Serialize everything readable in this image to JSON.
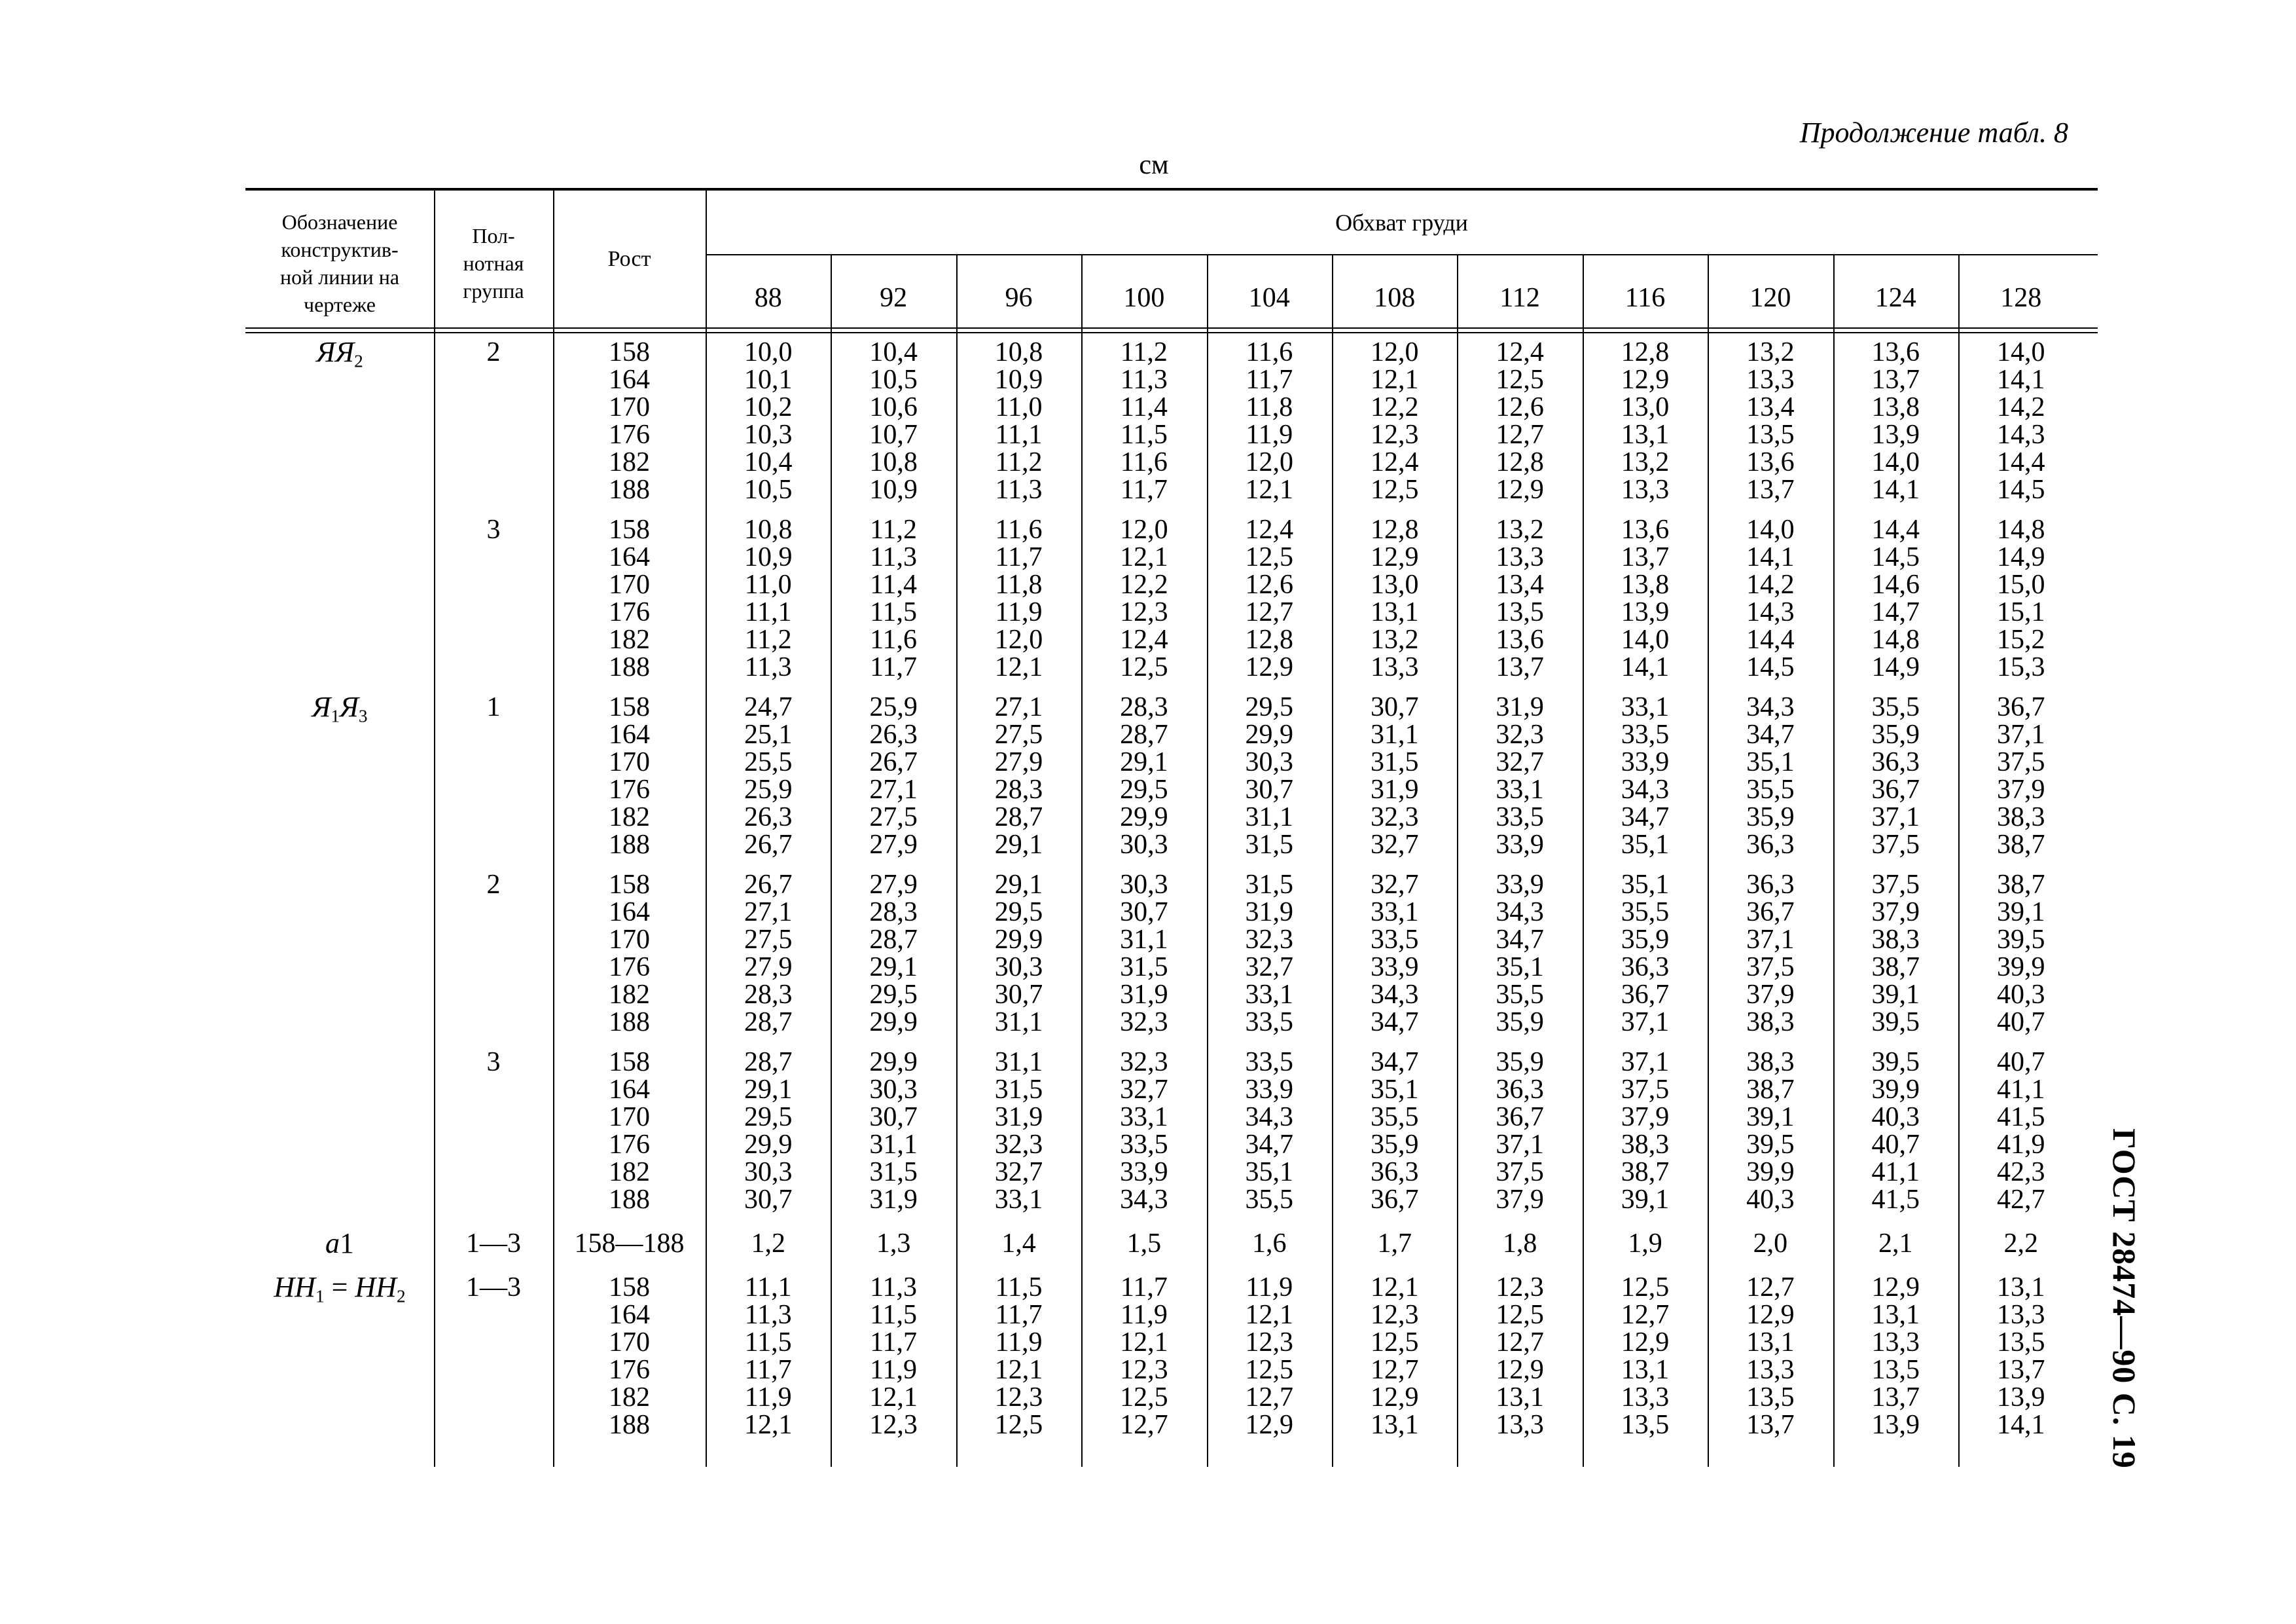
{
  "page": {
    "continuation_label": "Продолжение табл. 8",
    "unit_label": "см",
    "side_label": "ГОСТ 28474—90 С. 19"
  },
  "table": {
    "headers": {
      "col1": [
        "Обозначение",
        "конструктив-",
        "ной линии на",
        "чертеже"
      ],
      "col2": [
        "Пол-",
        "нотная",
        "группа"
      ],
      "col3": "Рост",
      "span": "Обхват груди",
      "sizes": [
        "88",
        "92",
        "96",
        "100",
        "104",
        "108",
        "112",
        "116",
        "120",
        "124",
        "128"
      ]
    },
    "sections": [
      {
        "label_parts": [
          {
            "t": "ЯЯ",
            "i": 1
          },
          {
            "t": "2",
            "sub": 1
          }
        ],
        "group": "2",
        "rows": [
          {
            "rost": "158",
            "values": [
              "10,0",
              "10,4",
              "10,8",
              "11,2",
              "11,6",
              "12,0",
              "12,4",
              "12,8",
              "13,2",
              "13,6",
              "14,0"
            ]
          },
          {
            "rost": "164",
            "values": [
              "10,1",
              "10,5",
              "10,9",
              "11,3",
              "11,7",
              "12,1",
              "12,5",
              "12,9",
              "13,3",
              "13,7",
              "14,1"
            ]
          },
          {
            "rost": "170",
            "values": [
              "10,2",
              "10,6",
              "11,0",
              "11,4",
              "11,8",
              "12,2",
              "12,6",
              "13,0",
              "13,4",
              "13,8",
              "14,2"
            ]
          },
          {
            "rost": "176",
            "values": [
              "10,3",
              "10,7",
              "11,1",
              "11,5",
              "11,9",
              "12,3",
              "12,7",
              "13,1",
              "13,5",
              "13,9",
              "14,3"
            ]
          },
          {
            "rost": "182",
            "values": [
              "10,4",
              "10,8",
              "11,2",
              "11,6",
              "12,0",
              "12,4",
              "12,8",
              "13,2",
              "13,6",
              "14,0",
              "14,4"
            ]
          },
          {
            "rost": "188",
            "values": [
              "10,5",
              "10,9",
              "11,3",
              "11,7",
              "12,1",
              "12,5",
              "12,9",
              "13,3",
              "13,7",
              "14,1",
              "14,5"
            ]
          }
        ]
      },
      {
        "label_parts": [],
        "group": "3",
        "rows": [
          {
            "rost": "158",
            "values": [
              "10,8",
              "11,2",
              "11,6",
              "12,0",
              "12,4",
              "12,8",
              "13,2",
              "13,6",
              "14,0",
              "14,4",
              "14,8"
            ]
          },
          {
            "rost": "164",
            "values": [
              "10,9",
              "11,3",
              "11,7",
              "12,1",
              "12,5",
              "12,9",
              "13,3",
              "13,7",
              "14,1",
              "14,5",
              "14,9"
            ]
          },
          {
            "rost": "170",
            "values": [
              "11,0",
              "11,4",
              "11,8",
              "12,2",
              "12,6",
              "13,0",
              "13,4",
              "13,8",
              "14,2",
              "14,6",
              "15,0"
            ]
          },
          {
            "rost": "176",
            "values": [
              "11,1",
              "11,5",
              "11,9",
              "12,3",
              "12,7",
              "13,1",
              "13,5",
              "13,9",
              "14,3",
              "14,7",
              "15,1"
            ]
          },
          {
            "rost": "182",
            "values": [
              "11,2",
              "11,6",
              "12,0",
              "12,4",
              "12,8",
              "13,2",
              "13,6",
              "14,0",
              "14,4",
              "14,8",
              "15,2"
            ]
          },
          {
            "rost": "188",
            "values": [
              "11,3",
              "11,7",
              "12,1",
              "12,5",
              "12,9",
              "13,3",
              "13,7",
              "14,1",
              "14,5",
              "14,9",
              "15,3"
            ]
          }
        ]
      },
      {
        "label_parts": [
          {
            "t": "Я",
            "i": 1
          },
          {
            "t": "1",
            "sub": 1
          },
          {
            "t": "Я",
            "i": 1
          },
          {
            "t": "3",
            "sub": 1
          }
        ],
        "group": "1",
        "rows": [
          {
            "rost": "158",
            "values": [
              "24,7",
              "25,9",
              "27,1",
              "28,3",
              "29,5",
              "30,7",
              "31,9",
              "33,1",
              "34,3",
              "35,5",
              "36,7"
            ]
          },
          {
            "rost": "164",
            "values": [
              "25,1",
              "26,3",
              "27,5",
              "28,7",
              "29,9",
              "31,1",
              "32,3",
              "33,5",
              "34,7",
              "35,9",
              "37,1"
            ]
          },
          {
            "rost": "170",
            "values": [
              "25,5",
              "26,7",
              "27,9",
              "29,1",
              "30,3",
              "31,5",
              "32,7",
              "33,9",
              "35,1",
              "36,3",
              "37,5"
            ]
          },
          {
            "rost": "176",
            "values": [
              "25,9",
              "27,1",
              "28,3",
              "29,5",
              "30,7",
              "31,9",
              "33,1",
              "34,3",
              "35,5",
              "36,7",
              "37,9"
            ]
          },
          {
            "rost": "182",
            "values": [
              "26,3",
              "27,5",
              "28,7",
              "29,9",
              "31,1",
              "32,3",
              "33,5",
              "34,7",
              "35,9",
              "37,1",
              "38,3"
            ]
          },
          {
            "rost": "188",
            "values": [
              "26,7",
              "27,9",
              "29,1",
              "30,3",
              "31,5",
              "32,7",
              "33,9",
              "35,1",
              "36,3",
              "37,5",
              "38,7"
            ]
          }
        ]
      },
      {
        "label_parts": [],
        "group": "2",
        "rows": [
          {
            "rost": "158",
            "values": [
              "26,7",
              "27,9",
              "29,1",
              "30,3",
              "31,5",
              "32,7",
              "33,9",
              "35,1",
              "36,3",
              "37,5",
              "38,7"
            ]
          },
          {
            "rost": "164",
            "values": [
              "27,1",
              "28,3",
              "29,5",
              "30,7",
              "31,9",
              "33,1",
              "34,3",
              "35,5",
              "36,7",
              "37,9",
              "39,1"
            ]
          },
          {
            "rost": "170",
            "values": [
              "27,5",
              "28,7",
              "29,9",
              "31,1",
              "32,3",
              "33,5",
              "34,7",
              "35,9",
              "37,1",
              "38,3",
              "39,5"
            ]
          },
          {
            "rost": "176",
            "values": [
              "27,9",
              "29,1",
              "30,3",
              "31,5",
              "32,7",
              "33,9",
              "35,1",
              "36,3",
              "37,5",
              "38,7",
              "39,9"
            ]
          },
          {
            "rost": "182",
            "values": [
              "28,3",
              "29,5",
              "30,7",
              "31,9",
              "33,1",
              "34,3",
              "35,5",
              "36,7",
              "37,9",
              "39,1",
              "40,3"
            ]
          },
          {
            "rost": "188",
            "values": [
              "28,7",
              "29,9",
              "31,1",
              "32,3",
              "33,5",
              "34,7",
              "35,9",
              "37,1",
              "38,3",
              "39,5",
              "40,7"
            ]
          }
        ]
      },
      {
        "label_parts": [],
        "group": "3",
        "rows": [
          {
            "rost": "158",
            "values": [
              "28,7",
              "29,9",
              "31,1",
              "32,3",
              "33,5",
              "34,7",
              "35,9",
              "37,1",
              "38,3",
              "39,5",
              "40,7"
            ]
          },
          {
            "rost": "164",
            "values": [
              "29,1",
              "30,3",
              "31,5",
              "32,7",
              "33,9",
              "35,1",
              "36,3",
              "37,5",
              "38,7",
              "39,9",
              "41,1"
            ]
          },
          {
            "rost": "170",
            "values": [
              "29,5",
              "30,7",
              "31,9",
              "33,1",
              "34,3",
              "35,5",
              "36,7",
              "37,9",
              "39,1",
              "40,3",
              "41,5"
            ]
          },
          {
            "rost": "176",
            "values": [
              "29,9",
              "31,1",
              "32,3",
              "33,5",
              "34,7",
              "35,9",
              "37,1",
              "38,3",
              "39,5",
              "40,7",
              "41,9"
            ]
          },
          {
            "rost": "182",
            "values": [
              "30,3",
              "31,5",
              "32,7",
              "33,9",
              "35,1",
              "36,3",
              "37,5",
              "38,7",
              "39,9",
              "41,1",
              "42,3"
            ]
          },
          {
            "rost": "188",
            "values": [
              "30,7",
              "31,9",
              "33,1",
              "34,3",
              "35,5",
              "36,7",
              "37,9",
              "39,1",
              "40,3",
              "41,5",
              "42,7"
            ]
          }
        ]
      },
      {
        "label_parts": [
          {
            "t": "a",
            "i": 1
          },
          {
            "t": "1"
          }
        ],
        "group": "1—3",
        "rows": [
          {
            "rost": "158—188",
            "values": [
              "1,2",
              "1,3",
              "1,4",
              "1,5",
              "1,6",
              "1,7",
              "1,8",
              "1,9",
              "2,0",
              "2,1",
              "2,2"
            ]
          }
        ]
      },
      {
        "label_parts": [
          {
            "t": "НН",
            "i": 1
          },
          {
            "t": "1",
            "sub": 1
          },
          {
            "t": " = "
          },
          {
            "t": "НН",
            "i": 1
          },
          {
            "t": "2",
            "sub": 1
          }
        ],
        "group": "1—3",
        "rows": [
          {
            "rost": "158",
            "values": [
              "11,1",
              "11,3",
              "11,5",
              "11,7",
              "11,9",
              "12,1",
              "12,3",
              "12,5",
              "12,7",
              "12,9",
              "13,1"
            ]
          },
          {
            "rost": "164",
            "values": [
              "11,3",
              "11,5",
              "11,7",
              "11,9",
              "12,1",
              "12,3",
              "12,5",
              "12,7",
              "12,9",
              "13,1",
              "13,3"
            ]
          },
          {
            "rost": "170",
            "values": [
              "11,5",
              "11,7",
              "11,9",
              "12,1",
              "12,3",
              "12,5",
              "12,7",
              "12,9",
              "13,1",
              "13,3",
              "13,5"
            ]
          },
          {
            "rost": "176",
            "values": [
              "11,7",
              "11,9",
              "12,1",
              "12,3",
              "12,5",
              "12,7",
              "12,9",
              "13,1",
              "13,3",
              "13,5",
              "13,7"
            ]
          },
          {
            "rost": "182",
            "values": [
              "11,9",
              "12,1",
              "12,3",
              "12,5",
              "12,7",
              "12,9",
              "13,1",
              "13,3",
              "13,5",
              "13,7",
              "13,9"
            ]
          },
          {
            "rost": "188",
            "values": [
              "12,1",
              "12,3",
              "12,5",
              "12,7",
              "12,9",
              "13,1",
              "13,3",
              "13,5",
              "13,7",
              "13,9",
              "14,1"
            ]
          }
        ]
      }
    ]
  }
}
